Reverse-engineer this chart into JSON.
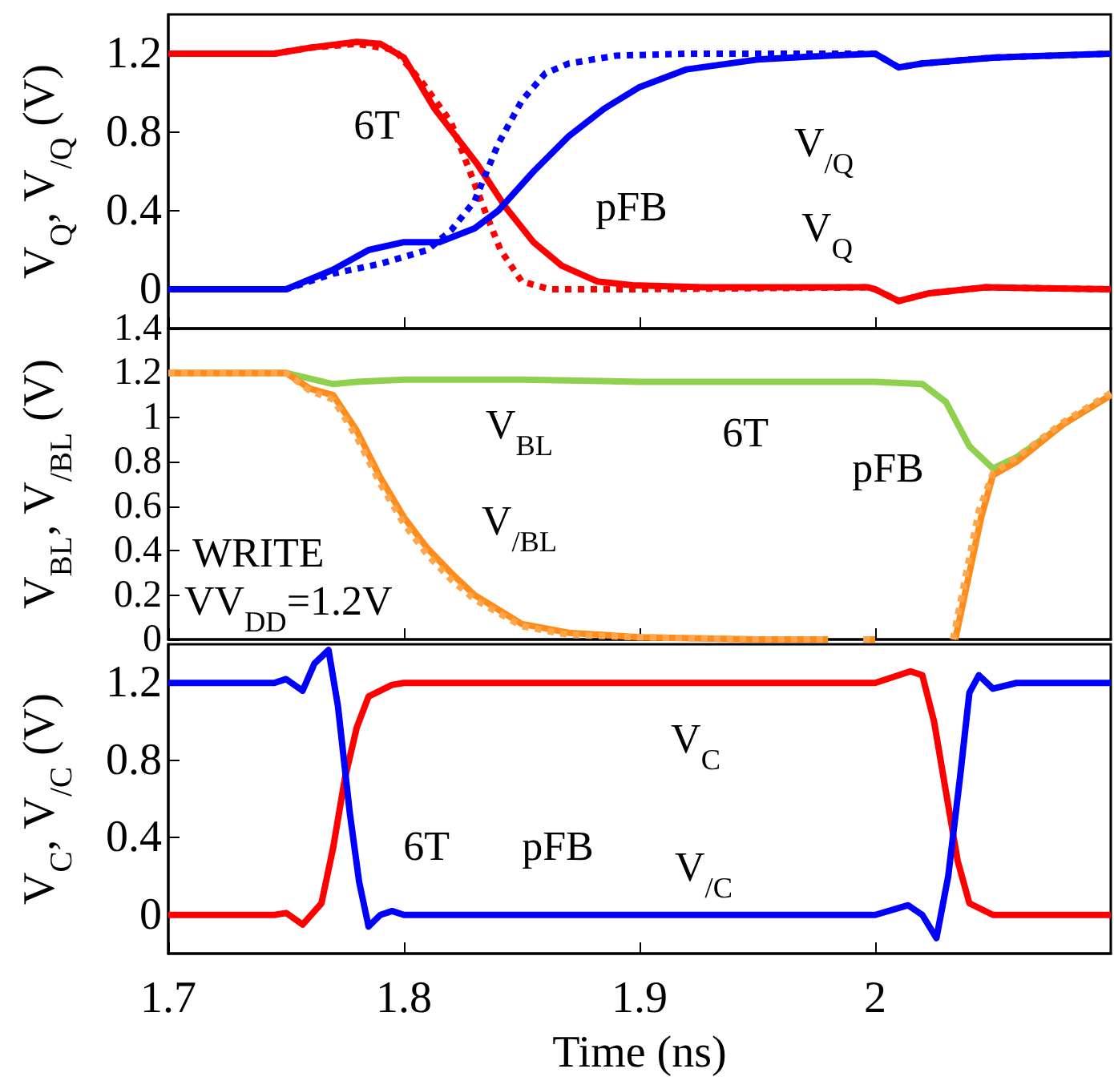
{
  "chart_data": [
    {
      "type": "line",
      "ylabel": "V$_{Q}$, V$_{/Q}$ (V)",
      "xlim": [
        1.7,
        2.1
      ],
      "xticks": [
        1.7,
        1.8,
        1.9,
        2
      ],
      "ylim": [
        -0.2,
        1.4
      ],
      "yticks": [
        0,
        0.4,
        0.8,
        1.2
      ],
      "tick_labels": "y",
      "series": [
        {
          "color": "#ff0000",
          "line_style": "solid",
          "x": [
            1.7,
            1.745,
            1.76,
            1.78,
            1.79,
            1.8,
            1.813,
            1.831,
            1.843,
            1.855,
            1.867,
            1.882,
            1.897,
            1.927,
            1.997,
            2.0,
            2.01,
            2.023,
            2.047,
            2.1
          ],
          "values": [
            1.2,
            1.2,
            1.23,
            1.26,
            1.25,
            1.18,
            0.92,
            0.64,
            0.42,
            0.24,
            0.12,
            0.04,
            0.02,
            0.01,
            0.01,
            0,
            -0.06,
            -0.02,
            0.01,
            0
          ]
        },
        {
          "color": "#ff0000",
          "line_style": "dotted",
          "x": [
            1.7,
            1.745,
            1.76,
            1.78,
            1.796,
            1.808,
            1.82,
            1.828,
            1.835,
            1.841,
            1.85,
            1.862,
            1.9,
            1.997,
            2.0,
            2.01,
            2.023,
            2.047,
            2.1
          ],
          "values": [
            1.2,
            1.2,
            1.23,
            1.25,
            1.22,
            1.05,
            0.85,
            0.6,
            0.38,
            0.2,
            0.04,
            0,
            0,
            0.01,
            0,
            -0.06,
            -0.02,
            0.01,
            0
          ]
        },
        {
          "color": "#0000ff",
          "line_style": "solid",
          "x": [
            1.7,
            1.75,
            1.77,
            1.785,
            1.8,
            1.815,
            1.83,
            1.84,
            1.855,
            1.87,
            1.885,
            1.9,
            1.92,
            1.95,
            1.98,
            2.0,
            2.01,
            2.02,
            2.05,
            2.1
          ],
          "values": [
            0,
            0,
            0.1,
            0.2,
            0.24,
            0.24,
            0.31,
            0.4,
            0.6,
            0.78,
            0.92,
            1.03,
            1.12,
            1.17,
            1.19,
            1.2,
            1.13,
            1.15,
            1.18,
            1.2
          ]
        },
        {
          "color": "#0000ff",
          "line_style": "dotted",
          "x": [
            1.7,
            1.75,
            1.77,
            1.79,
            1.81,
            1.82,
            1.83,
            1.84,
            1.85,
            1.86,
            1.87,
            1.89,
            1.92,
            2.0,
            2.01,
            2.02,
            2.05,
            2.1
          ],
          "values": [
            0,
            0,
            0.08,
            0.13,
            0.2,
            0.3,
            0.45,
            0.74,
            0.96,
            1.1,
            1.15,
            1.19,
            1.2,
            1.2,
            1.13,
            1.15,
            1.18,
            1.2
          ]
        }
      ],
      "annotations": [
        "V$_{/Q}$",
        "V$_{Q}$",
        "6T",
        "pFB"
      ]
    },
    {
      "type": "line",
      "ylabel": "V$_{BL}$, V$_{/BL}$ (V)",
      "xlim": [
        1.7,
        2.1
      ],
      "xticks": [
        1.7,
        1.8,
        1.9,
        2
      ],
      "ylim": [
        0,
        1.4
      ],
      "yticks": [
        0,
        0.2,
        0.4,
        0.6,
        0.8,
        1,
        1.2,
        1.4
      ],
      "tick_labels": "y",
      "series": [
        {
          "color": "#8fd14f",
          "line_style": "solid",
          "x": [
            1.7,
            1.75,
            1.77,
            1.78,
            1.8,
            1.85,
            1.9,
            2.0,
            2.02,
            2.03,
            2.04,
            2.05,
            2.06,
            2.08,
            2.1
          ],
          "values": [
            1.2,
            1.2,
            1.15,
            1.16,
            1.17,
            1.17,
            1.16,
            1.16,
            1.15,
            1.07,
            0.87,
            0.77,
            0.82,
            0.97,
            1.1
          ]
        },
        {
          "color": "#ff8c1a",
          "line_style": "solid",
          "x": [
            1.7,
            1.75,
            1.76,
            1.77,
            1.78,
            1.79,
            1.8,
            1.81,
            1.82,
            1.83,
            1.85,
            1.87,
            1.9,
            1.95,
            1.98,
            1.99,
            1.995,
            2.0,
            2.015,
            2.034,
            2.04,
            2.045,
            2.05,
            2.06,
            2.08,
            2.1
          ],
          "values": [
            1.2,
            1.2,
            1.13,
            1.1,
            0.94,
            0.73,
            0.55,
            0.41,
            0.3,
            0.2,
            0.07,
            0.03,
            0.01,
            0,
            0,
            null,
            0,
            0,
            null,
            0,
            0.3,
            0.55,
            0.74,
            0.8,
            0.97,
            1.1
          ]
        },
        {
          "color": "#ffa64d",
          "line_style": "dotted",
          "x": [
            1.7,
            1.75,
            1.76,
            1.77,
            1.78,
            1.79,
            1.8,
            1.81,
            1.82,
            1.83,
            1.85,
            1.87,
            1.9,
            1.95,
            1.98,
            1.99,
            1.995,
            2.0,
            2.015,
            2.033,
            2.039,
            2.044,
            2.05,
            2.06,
            2.08,
            2.1
          ],
          "values": [
            1.2,
            1.2,
            1.12,
            1.08,
            0.91,
            0.7,
            0.52,
            0.38,
            0.27,
            0.18,
            0.06,
            0.02,
            0.01,
            0,
            0,
            null,
            0,
            0,
            null,
            0,
            0.32,
            0.58,
            0.75,
            0.82,
            0.98,
            1.11
          ]
        }
      ],
      "annotations": [
        "V$_{BL}$",
        "6T",
        "pFB",
        "V$_{/BL}$",
        "WRITE",
        "VV$_{DD}$=1.2V"
      ]
    },
    {
      "type": "line",
      "xlabel": "Time (ns)",
      "ylabel": "V$_{C}$, V$_{/C}$ (V)",
      "xlim": [
        1.7,
        2.1
      ],
      "xticks": [
        1.7,
        1.8,
        1.9,
        2
      ],
      "ylim": [
        -0.2,
        1.4
      ],
      "yticks": [
        0,
        0.4,
        0.8,
        1.2
      ],
      "series": [
        {
          "color": "#ff0000",
          "line_style": "solid",
          "x": [
            1.7,
            1.745,
            1.75,
            1.757,
            1.765,
            1.77,
            1.775,
            1.78,
            1.785,
            1.795,
            1.8,
            2.0,
            2.015,
            2.02,
            2.025,
            2.03,
            2.035,
            2.04,
            2.05,
            2.1
          ],
          "values": [
            0,
            0,
            0.01,
            -0.05,
            0.06,
            0.35,
            0.71,
            0.97,
            1.13,
            1.19,
            1.2,
            1.2,
            1.26,
            1.24,
            1.0,
            0.64,
            0.28,
            0.06,
            0,
            0
          ]
        },
        {
          "color": "#0000ff",
          "line_style": "solid",
          "x": [
            1.7,
            1.745,
            1.75,
            1.757,
            1.762,
            1.768,
            1.772,
            1.777,
            1.781,
            1.785,
            1.79,
            1.795,
            1.8,
            2.0,
            2.014,
            2.02,
            2.026,
            2.031,
            2.036,
            2.04,
            2.044,
            2.05,
            2.06,
            2.1
          ],
          "values": [
            1.2,
            1.2,
            1.22,
            1.16,
            1.3,
            1.37,
            1.08,
            0.53,
            0.17,
            -0.06,
            0,
            0.02,
            0,
            0,
            0.05,
            0,
            -0.12,
            0.2,
            0.71,
            1.15,
            1.24,
            1.17,
            1.2,
            1.2
          ]
        }
      ],
      "annotations": [
        "V$_{C}$",
        "V$_{/C}$",
        "6T",
        "pFB"
      ]
    }
  ]
}
